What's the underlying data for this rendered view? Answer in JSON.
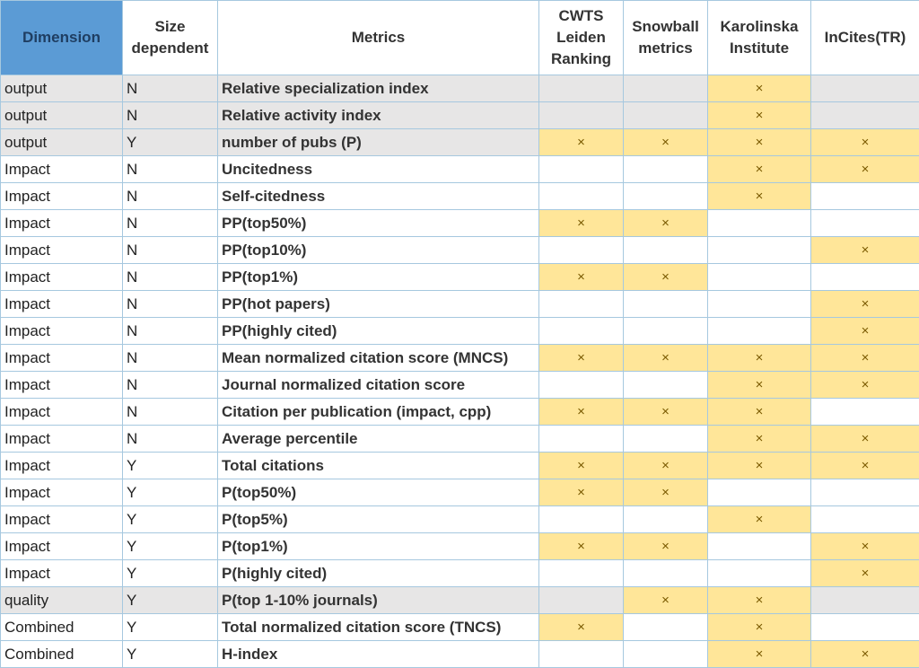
{
  "colors": {
    "header_highlight": "#5b9bd5",
    "mark_background": "#ffe699",
    "shaded_row": "#e7e6e6",
    "border": "#a6c8df"
  },
  "mark_symbol": "×",
  "headers": {
    "dimension": "Dimension",
    "size": "Size dependent",
    "metrics": "Metrics",
    "sources": [
      "CWTS Leiden Ranking",
      "Snowball metrics",
      "Karolinska Institute",
      "InCites(TR)"
    ]
  },
  "rows": [
    {
      "dimension": "output",
      "size": "N",
      "metric": "Relative specialization index",
      "marks": [
        false,
        false,
        true,
        false
      ],
      "shaded": true
    },
    {
      "dimension": "output",
      "size": "N",
      "metric": "Relative activity index",
      "marks": [
        false,
        false,
        true,
        false
      ],
      "shaded": true
    },
    {
      "dimension": "output",
      "size": "Y",
      "metric": "number of pubs (P)",
      "marks": [
        true,
        true,
        true,
        true
      ],
      "shaded": true
    },
    {
      "dimension": "Impact",
      "size": "N",
      "metric": "Uncitedness",
      "marks": [
        false,
        false,
        true,
        true
      ],
      "shaded": false
    },
    {
      "dimension": "Impact",
      "size": "N",
      "metric": "Self-citedness",
      "marks": [
        false,
        false,
        true,
        false
      ],
      "shaded": false
    },
    {
      "dimension": "Impact",
      "size": "N",
      "metric": "PP(top50%)",
      "marks": [
        true,
        true,
        false,
        false
      ],
      "shaded": false
    },
    {
      "dimension": "Impact",
      "size": "N",
      "metric": "PP(top10%)",
      "marks": [
        false,
        false,
        false,
        true
      ],
      "shaded": false
    },
    {
      "dimension": "Impact",
      "size": "N",
      "metric": "PP(top1%)",
      "marks": [
        true,
        true,
        false,
        false
      ],
      "shaded": false
    },
    {
      "dimension": "Impact",
      "size": "N",
      "metric": "PP(hot papers)",
      "marks": [
        false,
        false,
        false,
        true
      ],
      "shaded": false
    },
    {
      "dimension": "Impact",
      "size": "N",
      "metric": "PP(highly cited)",
      "marks": [
        false,
        false,
        false,
        true
      ],
      "shaded": false
    },
    {
      "dimension": "Impact",
      "size": "N",
      "metric": "Mean normalized citation score (MNCS)",
      "marks": [
        true,
        true,
        true,
        true
      ],
      "shaded": false
    },
    {
      "dimension": "Impact",
      "size": "N",
      "metric": "Journal normalized citation score",
      "marks": [
        false,
        false,
        true,
        true
      ],
      "shaded": false
    },
    {
      "dimension": "Impact",
      "size": "N",
      "metric": "Citation per publication (impact, cpp)",
      "marks": [
        true,
        true,
        true,
        false
      ],
      "shaded": false
    },
    {
      "dimension": "Impact",
      "size": "N",
      "metric": "Average percentile",
      "marks": [
        false,
        false,
        true,
        true
      ],
      "shaded": false
    },
    {
      "dimension": "Impact",
      "size": "Y",
      "metric": "Total citations",
      "marks": [
        true,
        true,
        true,
        true
      ],
      "shaded": false
    },
    {
      "dimension": "Impact",
      "size": "Y",
      "metric": "P(top50%)",
      "marks": [
        true,
        true,
        false,
        false
      ],
      "shaded": false
    },
    {
      "dimension": "Impact",
      "size": "Y",
      "metric": "P(top5%)",
      "marks": [
        false,
        false,
        true,
        false
      ],
      "shaded": false
    },
    {
      "dimension": "Impact",
      "size": "Y",
      "metric": "P(top1%)",
      "marks": [
        true,
        true,
        false,
        true
      ],
      "shaded": false
    },
    {
      "dimension": "Impact",
      "size": "Y",
      "metric": "P(highly cited)",
      "marks": [
        false,
        false,
        false,
        true
      ],
      "shaded": false
    },
    {
      "dimension": "quality",
      "size": "Y",
      "metric": "P(top 1-10% journals)",
      "marks": [
        false,
        true,
        true,
        false
      ],
      "shaded": true
    },
    {
      "dimension": "Combined",
      "size": "Y",
      "metric": "Total normalized citation score (TNCS)",
      "marks": [
        true,
        false,
        true,
        false
      ],
      "shaded": false
    },
    {
      "dimension": "Combined",
      "size": "Y",
      "metric": "H-index",
      "marks": [
        false,
        false,
        true,
        true
      ],
      "shaded": false
    }
  ]
}
